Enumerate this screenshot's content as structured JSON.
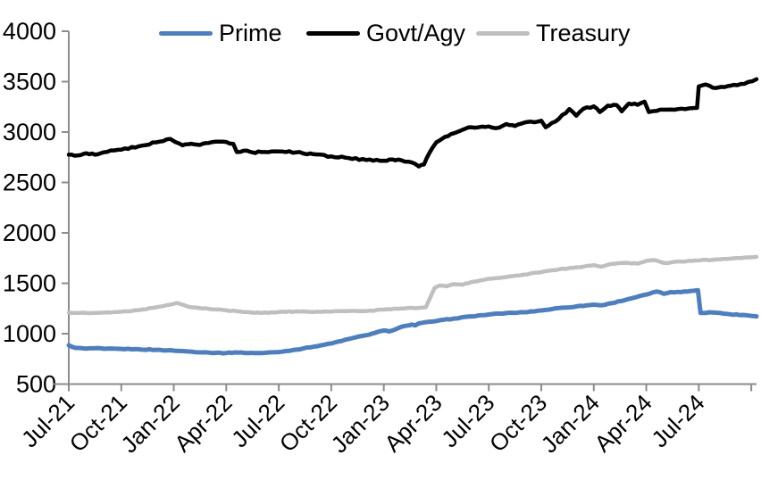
{
  "chart_data": {
    "type": "line",
    "title": "",
    "xlabel": "",
    "ylabel": "",
    "grid": false,
    "legend_position": "top",
    "axis_color": "#8C8C8C",
    "text_color": "#000000",
    "ylim": [
      500,
      4000
    ],
    "y_ticks": [
      500,
      1000,
      1500,
      2000,
      2500,
      3000,
      3500,
      4000
    ],
    "x_tick_labels": [
      "Jul-21",
      "Oct-21",
      "Jan-22",
      "Apr-22",
      "Jul-22",
      "Oct-22",
      "Jan-23",
      "Apr-23",
      "Jul-23",
      "Oct-23",
      "Jan-24",
      "Apr-24",
      "Jul-24"
    ],
    "x_tick_months": [
      0,
      3,
      6,
      9,
      12,
      15,
      18,
      21,
      24,
      27,
      30,
      33,
      36
    ],
    "x_domain_months": [
      0,
      39.3
    ],
    "x_end_tick_month": 39,
    "x_unit": "months since Jul-2021",
    "y_unit": "assets (bn USD, approx.)",
    "series": [
      {
        "name": "Prime",
        "color": "#4E7FBC",
        "points": [
          [
            0,
            885
          ],
          [
            0.4,
            858
          ],
          [
            1,
            852
          ],
          [
            1.5,
            856
          ],
          [
            2,
            850
          ],
          [
            3,
            849
          ],
          [
            4,
            845
          ],
          [
            5,
            840
          ],
          [
            6,
            832
          ],
          [
            7,
            822
          ],
          [
            8,
            812
          ],
          [
            9,
            808
          ],
          [
            9.5,
            814
          ],
          [
            10,
            810
          ],
          [
            11,
            808
          ],
          [
            12,
            818
          ],
          [
            13,
            842
          ],
          [
            14,
            872
          ],
          [
            15,
            903
          ],
          [
            16,
            947
          ],
          [
            17,
            985
          ],
          [
            17.5,
            1008
          ],
          [
            18,
            1032
          ],
          [
            18.3,
            1022
          ],
          [
            19,
            1068
          ],
          [
            19.6,
            1090
          ],
          [
            19.8,
            1082
          ],
          [
            20,
            1102
          ],
          [
            21,
            1126
          ],
          [
            22,
            1150
          ],
          [
            23,
            1172
          ],
          [
            24,
            1190
          ],
          [
            25,
            1204
          ],
          [
            26,
            1212
          ],
          [
            27,
            1230
          ],
          [
            28,
            1254
          ],
          [
            29,
            1270
          ],
          [
            30,
            1288
          ],
          [
            30.5,
            1282
          ],
          [
            31,
            1302
          ],
          [
            32,
            1344
          ],
          [
            33,
            1388
          ],
          [
            33.6,
            1418
          ],
          [
            34,
            1396
          ],
          [
            34.4,
            1412
          ],
          [
            35,
            1412
          ],
          [
            35.5,
            1422
          ],
          [
            35.95,
            1432
          ],
          [
            36.1,
            1206
          ],
          [
            36.6,
            1212
          ],
          [
            37,
            1208
          ],
          [
            37.8,
            1192
          ],
          [
            38.5,
            1186
          ],
          [
            39.3,
            1172
          ]
        ]
      },
      {
        "name": "Govt/Agy",
        "color": "#000000",
        "points": [
          [
            0,
            2775
          ],
          [
            0.5,
            2768
          ],
          [
            1,
            2790
          ],
          [
            1.5,
            2775
          ],
          [
            2,
            2800
          ],
          [
            3,
            2825
          ],
          [
            4,
            2858
          ],
          [
            5,
            2898
          ],
          [
            5.8,
            2932
          ],
          [
            6.1,
            2900
          ],
          [
            6.5,
            2868
          ],
          [
            7,
            2884
          ],
          [
            7.5,
            2872
          ],
          [
            8,
            2892
          ],
          [
            8.6,
            2905
          ],
          [
            9.4,
            2882
          ],
          [
            9.6,
            2802
          ],
          [
            10,
            2815
          ],
          [
            10.5,
            2798
          ],
          [
            11,
            2802
          ],
          [
            12,
            2808
          ],
          [
            13,
            2798
          ],
          [
            14,
            2780
          ],
          [
            15,
            2758
          ],
          [
            16,
            2742
          ],
          [
            17,
            2722
          ],
          [
            18,
            2716
          ],
          [
            18.5,
            2728
          ],
          [
            19,
            2720
          ],
          [
            19.6,
            2698
          ],
          [
            20,
            2658
          ],
          [
            20.3,
            2678
          ],
          [
            20.6,
            2790
          ],
          [
            21,
            2898
          ],
          [
            21.5,
            2952
          ],
          [
            22,
            2988
          ],
          [
            22.5,
            3022
          ],
          [
            23,
            3048
          ],
          [
            24,
            3056
          ],
          [
            24.4,
            3038
          ],
          [
            25,
            3080
          ],
          [
            25.5,
            3060
          ],
          [
            26,
            3092
          ],
          [
            27,
            3112
          ],
          [
            27.25,
            3048
          ],
          [
            27.6,
            3090
          ],
          [
            28,
            3130
          ],
          [
            28.6,
            3228
          ],
          [
            29,
            3162
          ],
          [
            29.4,
            3230
          ],
          [
            30,
            3255
          ],
          [
            30.35,
            3198
          ],
          [
            30.8,
            3262
          ],
          [
            31.3,
            3268
          ],
          [
            31.6,
            3205
          ],
          [
            32,
            3282
          ],
          [
            32.5,
            3270
          ],
          [
            32.9,
            3302
          ],
          [
            33.15,
            3198
          ],
          [
            33.6,
            3210
          ],
          [
            34.2,
            3222
          ],
          [
            35,
            3232
          ],
          [
            35.9,
            3240
          ],
          [
            36.0,
            3452
          ],
          [
            36.4,
            3472
          ],
          [
            36.8,
            3440
          ],
          [
            37.3,
            3448
          ],
          [
            38,
            3468
          ],
          [
            38.6,
            3478
          ],
          [
            39.3,
            3525
          ]
        ]
      },
      {
        "name": "Treasury",
        "color": "#BFBFBF",
        "points": [
          [
            0,
            1210
          ],
          [
            1,
            1205
          ],
          [
            2,
            1209
          ],
          [
            3,
            1218
          ],
          [
            4,
            1234
          ],
          [
            5,
            1262
          ],
          [
            6.2,
            1304
          ],
          [
            6.6,
            1282
          ],
          [
            7,
            1262
          ],
          [
            8,
            1246
          ],
          [
            9,
            1232
          ],
          [
            10,
            1214
          ],
          [
            11,
            1206
          ],
          [
            12,
            1214
          ],
          [
            13,
            1221
          ],
          [
            14,
            1214
          ],
          [
            15,
            1219
          ],
          [
            16,
            1225
          ],
          [
            17,
            1224
          ],
          [
            18,
            1239
          ],
          [
            19,
            1250
          ],
          [
            20,
            1256
          ],
          [
            20.4,
            1262
          ],
          [
            20.9,
            1452
          ],
          [
            21.2,
            1478
          ],
          [
            21.6,
            1470
          ],
          [
            22,
            1492
          ],
          [
            22.5,
            1486
          ],
          [
            23,
            1512
          ],
          [
            23.5,
            1528
          ],
          [
            24,
            1544
          ],
          [
            25,
            1562
          ],
          [
            26,
            1586
          ],
          [
            27,
            1610
          ],
          [
            28,
            1638
          ],
          [
            29,
            1658
          ],
          [
            30,
            1680
          ],
          [
            30.4,
            1664
          ],
          [
            31,
            1692
          ],
          [
            32,
            1702
          ],
          [
            32.5,
            1694
          ],
          [
            33,
            1722
          ],
          [
            33.4,
            1730
          ],
          [
            34.1,
            1700
          ],
          [
            34.6,
            1712
          ],
          [
            35,
            1716
          ],
          [
            36,
            1726
          ],
          [
            37,
            1736
          ],
          [
            38,
            1748
          ],
          [
            39.3,
            1762
          ]
        ]
      }
    ]
  }
}
